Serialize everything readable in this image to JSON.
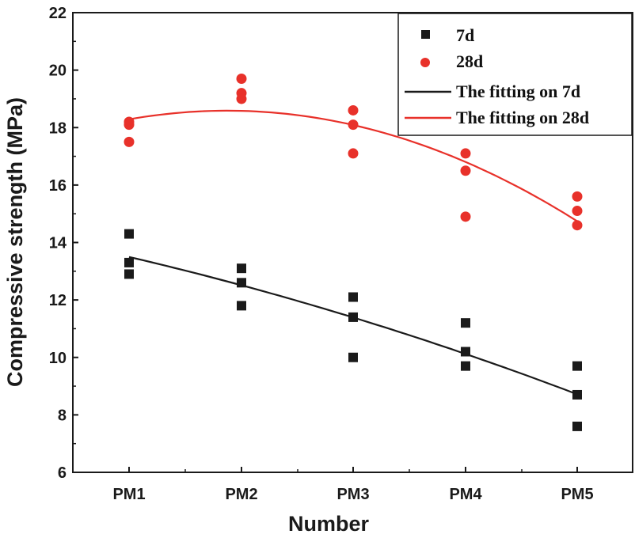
{
  "chart_data": {
    "type": "scatter",
    "title": "",
    "xlabel": "Number",
    "ylabel": "Compressive strength (MPa)",
    "categories": [
      "PM1",
      "PM2",
      "PM3",
      "PM4",
      "PM5"
    ],
    "ylim": [
      6,
      22
    ],
    "yticks": [
      6,
      8,
      10,
      12,
      14,
      16,
      18,
      20,
      22
    ],
    "grid": false,
    "legend_position": "top-right",
    "series": [
      {
        "name": "7d",
        "kind": "points",
        "marker": "square",
        "color": "#1a1a1a",
        "values": [
          [
            14.3,
            13.3,
            12.9
          ],
          [
            13.1,
            12.6,
            11.8
          ],
          [
            12.1,
            11.4,
            10.0
          ],
          [
            11.2,
            10.2,
            9.7
          ],
          [
            9.7,
            8.7,
            7.6
          ]
        ]
      },
      {
        "name": "28d",
        "kind": "points",
        "marker": "circle",
        "color": "#e8312a",
        "values": [
          [
            18.2,
            18.1,
            17.5
          ],
          [
            19.7,
            19.2,
            19.0
          ],
          [
            18.6,
            18.1,
            17.1
          ],
          [
            17.1,
            16.5,
            14.9
          ],
          [
            15.6,
            15.1,
            14.6
          ]
        ]
      },
      {
        "name": "The fitting on 7d",
        "kind": "fit",
        "color": "#1a1a1a",
        "x": [
          1,
          2,
          3,
          4,
          5
        ],
        "values": [
          13.5,
          12.5,
          11.4,
          10.1,
          8.7
        ]
      },
      {
        "name": "The fitting on 28d",
        "kind": "fit",
        "color": "#e8312a",
        "x": [
          1,
          2,
          3,
          4,
          5
        ],
        "values": [
          18.3,
          18.55,
          18.1,
          16.8,
          14.7
        ]
      }
    ]
  }
}
